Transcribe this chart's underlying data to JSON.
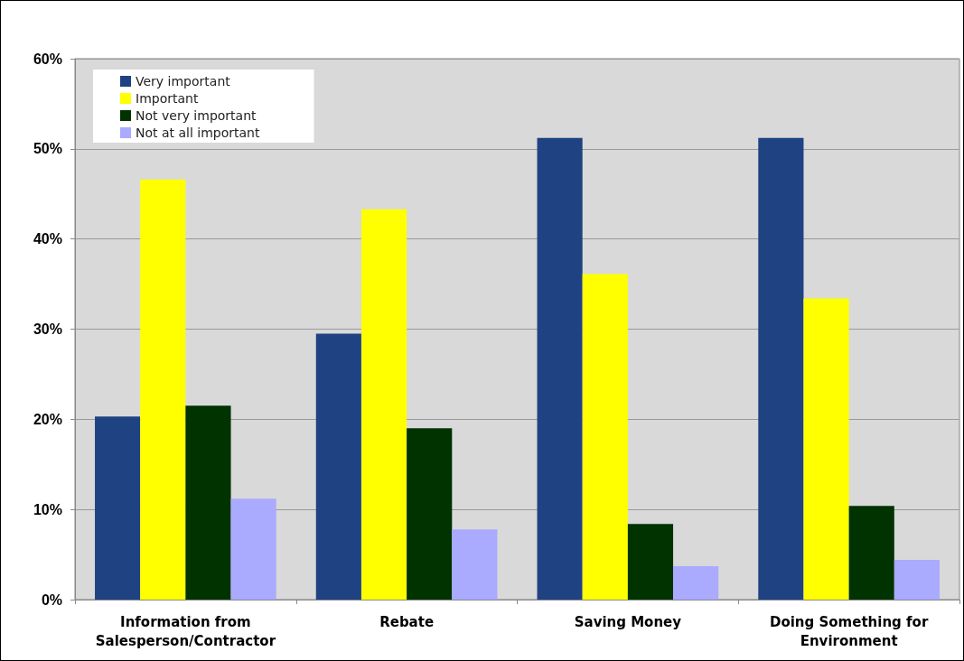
{
  "chart_data": {
    "type": "bar",
    "categories": [
      "Information from\nSalesperson/Contractor",
      "Rebate",
      "Saving Money",
      "Doing Something for\nEnvironment"
    ],
    "series": [
      {
        "name": "Very important",
        "color": "#1f4282",
        "values": [
          20.3,
          29.5,
          51.2,
          51.2
        ]
      },
      {
        "name": "Important",
        "color": "#ffff00",
        "values": [
          46.6,
          43.3,
          36.1,
          33.4
        ]
      },
      {
        "name": "Not very important",
        "color": "#003300",
        "values": [
          21.5,
          19.0,
          8.4,
          10.4
        ]
      },
      {
        "name": "Not at all important",
        "color": "#aaaaff",
        "values": [
          11.2,
          7.8,
          3.7,
          4.4
        ]
      }
    ],
    "ylim": [
      0,
      60
    ],
    "yticks": [
      {
        "value": 0,
        "label": "0%"
      },
      {
        "value": 10,
        "label": "10%"
      },
      {
        "value": 20,
        "label": "20%"
      },
      {
        "value": 30,
        "label": "30%"
      },
      {
        "value": 40,
        "label": "40%"
      },
      {
        "value": 50,
        "label": "50%"
      },
      {
        "value": 60,
        "label": "60%"
      }
    ],
    "grid": "y",
    "legend": "top left"
  }
}
